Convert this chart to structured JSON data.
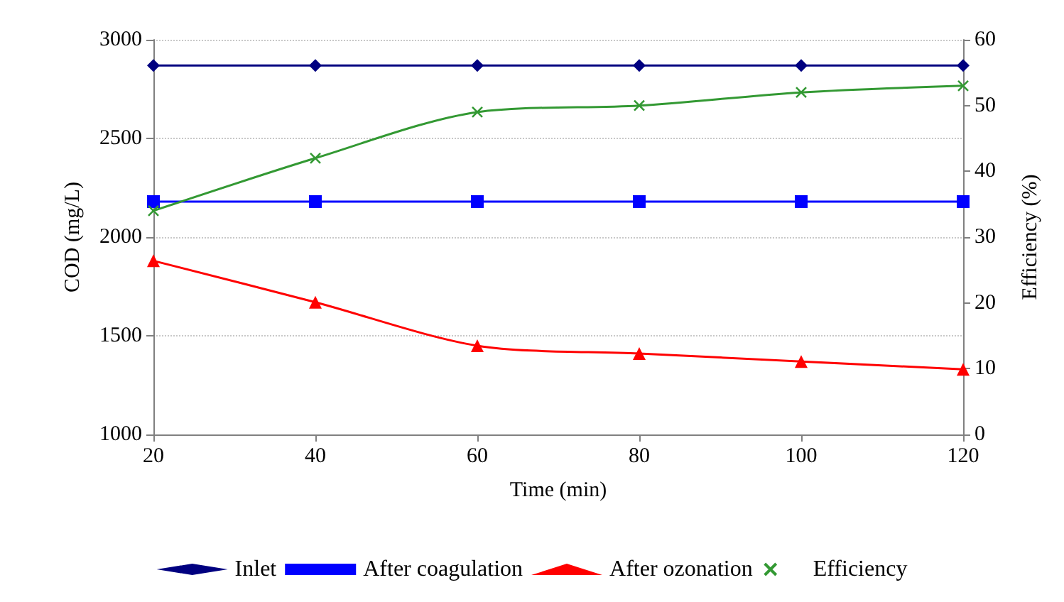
{
  "chart_data": {
    "type": "line",
    "xlabel": "Time (min)",
    "ylabel": "COD (mg/L)",
    "y2label": "Efficiency (%)",
    "x": [
      20,
      40,
      60,
      80,
      100,
      120
    ],
    "xlim": [
      20,
      120
    ],
    "xticks": [
      20,
      40,
      60,
      80,
      100,
      120
    ],
    "ylim": [
      1000,
      3000
    ],
    "yticks": [
      1000,
      1500,
      2000,
      2500,
      3000
    ],
    "y2lim": [
      0,
      60
    ],
    "y2ticks": [
      0,
      10,
      20,
      30,
      40,
      50,
      60
    ],
    "grid": "y",
    "legend": "bottom",
    "series": [
      {
        "name": "Inlet",
        "color": "#000080",
        "marker": "diamond",
        "values": [
          2870,
          2870,
          2870,
          2870,
          2870,
          2870
        ]
      },
      {
        "name": "After coagulation",
        "color": "#0000ff",
        "marker": "square",
        "values": [
          2180,
          2180,
          2180,
          2180,
          2180,
          2180
        ]
      },
      {
        "name": "After ozonation",
        "color": "#ff0000",
        "marker": "triangle",
        "values": [
          1880,
          1670,
          1450,
          1410,
          1370,
          1330
        ]
      },
      {
        "name": "Efficiency",
        "color": "#339933",
        "marker": "cross",
        "axis": "y2",
        "values": [
          34,
          42,
          49,
          50,
          52,
          53
        ]
      }
    ]
  }
}
